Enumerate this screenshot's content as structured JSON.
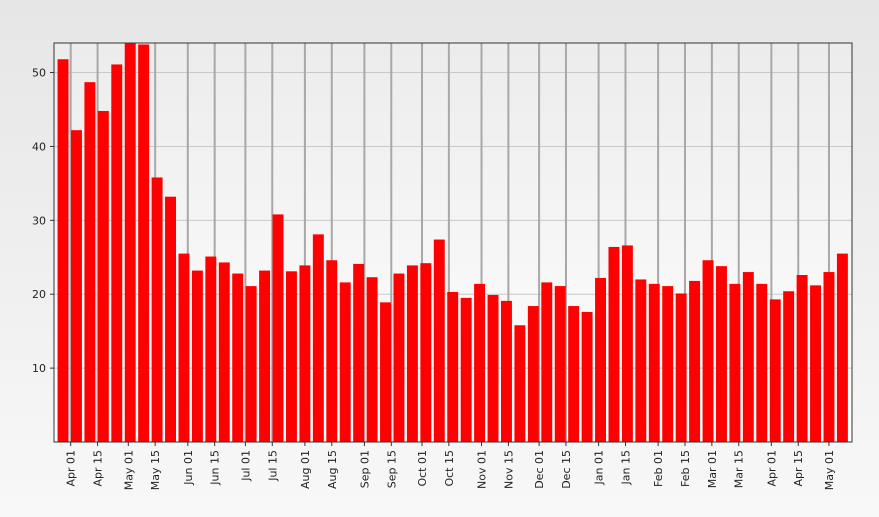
{
  "chart_data": {
    "type": "bar",
    "color": "#ff0000",
    "x": [
      0,
      7,
      14,
      21,
      28,
      35,
      42,
      49,
      56,
      63,
      70,
      77,
      84,
      91,
      98,
      105,
      112,
      119,
      126,
      133,
      140,
      147,
      154,
      161,
      168,
      175,
      182,
      189,
      196,
      203,
      210,
      217,
      224,
      231,
      238,
      245,
      252,
      259,
      266,
      273,
      280,
      287,
      294,
      301,
      308,
      315,
      322,
      329,
      336,
      343,
      350,
      357,
      364,
      371,
      378,
      385,
      392,
      399,
      406
    ],
    "values": [
      51.8,
      42.2,
      48.7,
      44.8,
      51.1,
      55,
      53.8,
      35.8,
      33.2,
      25.5,
      23.2,
      25.1,
      24.3,
      22.8,
      21.1,
      23.2,
      30.8,
      23.1,
      23.9,
      28.1,
      24.6,
      21.6,
      24.1,
      22.3,
      18.9,
      22.8,
      23.9,
      24.2,
      27.4,
      20.3,
      19.5,
      21.4,
      19.9,
      19.1,
      15.8,
      18.4,
      21.6,
      21.1,
      18.4,
      17.6,
      22.2,
      26.4,
      26.6,
      22.0,
      21.4,
      21.1,
      20.1,
      21.8,
      24.6,
      23.8,
      21.4,
      23.0,
      21.4,
      19.3,
      20.4,
      22.6,
      21.2,
      23.0,
      25.5
    ],
    "xlim": [
      -4.7,
      411
    ],
    "xticks": [
      {
        "value": 4,
        "label": "Apr 01"
      },
      {
        "value": 18,
        "label": "Apr 15"
      },
      {
        "value": 34,
        "label": "May 01"
      },
      {
        "value": 48,
        "label": "May 15"
      },
      {
        "value": 65,
        "label": "Jun 01"
      },
      {
        "value": 79,
        "label": "Jun 15"
      },
      {
        "value": 95,
        "label": "Jul 01"
      },
      {
        "value": 109,
        "label": "Jul 15"
      },
      {
        "value": 126,
        "label": "Aug 01"
      },
      {
        "value": 140,
        "label": "Aug 15"
      },
      {
        "value": 157,
        "label": "Sep 01"
      },
      {
        "value": 171,
        "label": "Sep 15"
      },
      {
        "value": 187,
        "label": "Oct 01"
      },
      {
        "value": 201,
        "label": "Oct 15"
      },
      {
        "value": 218,
        "label": "Nov 01"
      },
      {
        "value": 232,
        "label": "Nov 15"
      },
      {
        "value": 248,
        "label": "Dec 01"
      },
      {
        "value": 262,
        "label": "Dec 15"
      },
      {
        "value": 279,
        "label": "Jan 01"
      },
      {
        "value": 293,
        "label": "Jan 15"
      },
      {
        "value": 310,
        "label": "Feb 01"
      },
      {
        "value": 324,
        "label": "Feb 15"
      },
      {
        "value": 338,
        "label": "Mar 01"
      },
      {
        "value": 352,
        "label": "Mar 15"
      },
      {
        "value": 369,
        "label": "Apr 01"
      },
      {
        "value": 383,
        "label": "Apr 15"
      },
      {
        "value": 399,
        "label": "May 01"
      }
    ],
    "ylim": [
      0,
      54
    ],
    "yticks": [
      10,
      20,
      30,
      40,
      50
    ],
    "grid": true
  }
}
